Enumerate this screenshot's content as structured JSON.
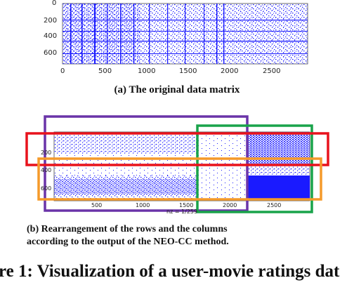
{
  "panel_a": {
    "y_ticks": [
      "0",
      "200",
      "400",
      "600"
    ],
    "x_ticks": [
      "0",
      "500",
      "1000",
      "1500",
      "2000",
      "2500"
    ],
    "caption": "(a) The original data matrix"
  },
  "panel_b": {
    "y_ticks": [
      "200",
      "400",
      "600"
    ],
    "x_ticks": [
      "500",
      "1000",
      "1500",
      "2000",
      "2500"
    ],
    "nz_label": "nz = 1/259",
    "caption_line1": "(b) Rearrangement of the rows and the columns",
    "caption_line2": "according to the output of the NEO-CC method.",
    "box_colors": {
      "purple": "#6a34a8",
      "green": "#19a34a",
      "red": "#e8121c",
      "orange": "#f59a2a"
    }
  },
  "figure_caption": "re 1: Visualization of a user-movie ratings dat",
  "colors": {
    "dots": "#1a1aff"
  }
}
